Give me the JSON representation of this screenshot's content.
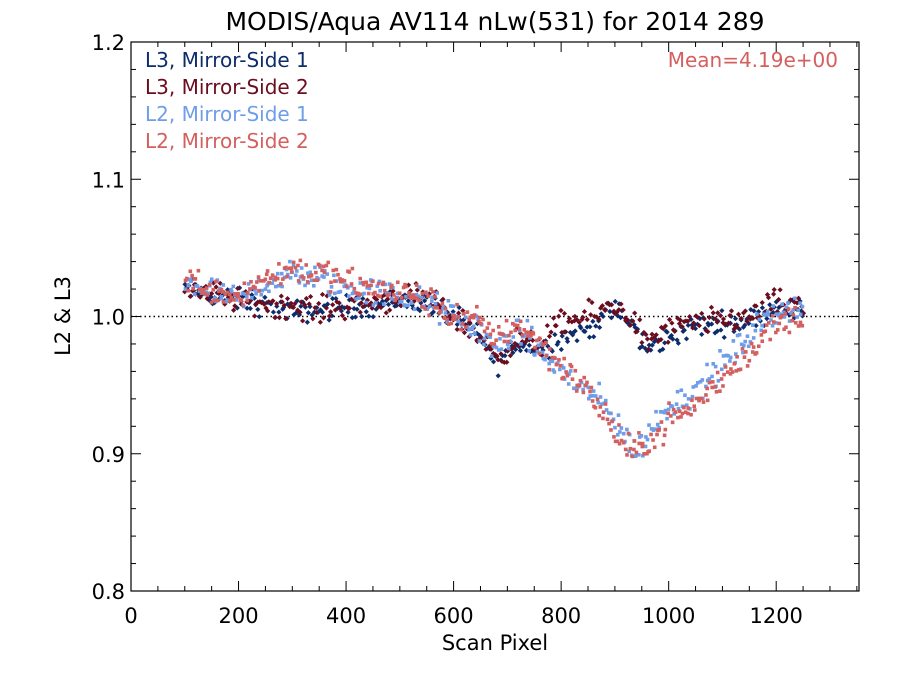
{
  "chart_data": {
    "type": "scatter",
    "title": "MODIS/Aqua AV114 nLw(531) for 2014 289",
    "xlabel": "Scan Pixel",
    "ylabel": "L2 & L3",
    "xlim": [
      0,
      1354
    ],
    "ylim": [
      0.8,
      1.2
    ],
    "xticks": [
      0,
      200,
      400,
      600,
      800,
      1000,
      1200
    ],
    "yticks": [
      0.8,
      0.9,
      1.0,
      1.1,
      1.2
    ],
    "xtick_labels": [
      "0",
      "200",
      "400",
      "600",
      "800",
      "1000",
      "1200"
    ],
    "ytick_labels": [
      "0.8",
      "0.9",
      "1.0",
      "1.1",
      "1.2"
    ],
    "reference_line": {
      "y": 1.0,
      "style": "dotted"
    },
    "annotation": {
      "text": "Mean=4.19e+00",
      "color": "#d45f5f"
    },
    "legend_position": "top-left",
    "series": [
      {
        "name": "L3, Mirror-Side 1",
        "color": "#0d2c6b",
        "marker": "diamond",
        "knots": [
          [
            100,
            1.02
          ],
          [
            150,
            1.015
          ],
          [
            200,
            1.012
          ],
          [
            250,
            1.008
          ],
          [
            300,
            1.003
          ],
          [
            350,
            1.005
          ],
          [
            400,
            1.007
          ],
          [
            450,
            1.008
          ],
          [
            500,
            1.012
          ],
          [
            550,
            1.01
          ],
          [
            600,
            1.0
          ],
          [
            650,
            0.985
          ],
          [
            680,
            0.965
          ],
          [
            700,
            0.975
          ],
          [
            720,
            0.98
          ],
          [
            760,
            0.975
          ],
          [
            800,
            0.985
          ],
          [
            850,
            0.99
          ],
          [
            880,
            1.0
          ],
          [
            900,
            1.005
          ],
          [
            930,
            0.995
          ],
          [
            960,
            0.975
          ],
          [
            1000,
            0.985
          ],
          [
            1050,
            0.993
          ],
          [
            1100,
            0.995
          ],
          [
            1150,
            0.997
          ],
          [
            1200,
            1.008
          ],
          [
            1250,
            1.003
          ]
        ],
        "noise": 0.007,
        "count": 330
      },
      {
        "name": "L3, Mirror-Side 2",
        "color": "#6b0d1f",
        "marker": "diamond",
        "knots": [
          [
            100,
            1.022
          ],
          [
            150,
            1.017
          ],
          [
            200,
            1.012
          ],
          [
            250,
            1.01
          ],
          [
            300,
            1.008
          ],
          [
            350,
            1.005
          ],
          [
            400,
            1.008
          ],
          [
            450,
            1.01
          ],
          [
            500,
            1.015
          ],
          [
            550,
            1.012
          ],
          [
            600,
            1.0
          ],
          [
            650,
            0.985
          ],
          [
            680,
            0.97
          ],
          [
            700,
            0.977
          ],
          [
            720,
            0.982
          ],
          [
            760,
            0.98
          ],
          [
            800,
            0.995
          ],
          [
            850,
            1.0
          ],
          [
            880,
            1.005
          ],
          [
            900,
            1.008
          ],
          [
            930,
            1.0
          ],
          [
            960,
            0.98
          ],
          [
            1000,
            0.99
          ],
          [
            1050,
            0.995
          ],
          [
            1100,
            0.997
          ],
          [
            1150,
            1.0
          ],
          [
            1200,
            1.01
          ],
          [
            1250,
            1.005
          ]
        ],
        "noise": 0.008,
        "count": 330
      },
      {
        "name": "L2, Mirror-Side 1",
        "color": "#6f9ee8",
        "marker": "square",
        "knots": [
          [
            100,
            1.025
          ],
          [
            150,
            1.018
          ],
          [
            200,
            1.01
          ],
          [
            250,
            1.025
          ],
          [
            300,
            1.03
          ],
          [
            350,
            1.028
          ],
          [
            400,
            1.02
          ],
          [
            450,
            1.018
          ],
          [
            500,
            1.015
          ],
          [
            550,
            1.01
          ],
          [
            600,
            1.0
          ],
          [
            650,
            0.99
          ],
          [
            680,
            0.975
          ],
          [
            700,
            0.985
          ],
          [
            720,
            0.99
          ],
          [
            760,
            0.975
          ],
          [
            800,
            0.96
          ],
          [
            850,
            0.945
          ],
          [
            880,
            0.935
          ],
          [
            900,
            0.925
          ],
          [
            930,
            0.905
          ],
          [
            950,
            0.905
          ],
          [
            980,
            0.925
          ],
          [
            1000,
            0.935
          ],
          [
            1050,
            0.945
          ],
          [
            1100,
            0.965
          ],
          [
            1150,
            0.985
          ],
          [
            1200,
            1.005
          ],
          [
            1250,
            1.005
          ]
        ],
        "noise": 0.009,
        "count": 380
      },
      {
        "name": "L2, Mirror-Side 2",
        "color": "#d45f5f",
        "marker": "square",
        "knots": [
          [
            100,
            1.028
          ],
          [
            150,
            1.02
          ],
          [
            200,
            1.015
          ],
          [
            250,
            1.028
          ],
          [
            300,
            1.035
          ],
          [
            350,
            1.032
          ],
          [
            400,
            1.025
          ],
          [
            450,
            1.02
          ],
          [
            500,
            1.018
          ],
          [
            550,
            1.012
          ],
          [
            600,
            1.0
          ],
          [
            650,
            0.995
          ],
          [
            680,
            0.985
          ],
          [
            700,
            0.99
          ],
          [
            720,
            0.995
          ],
          [
            760,
            0.98
          ],
          [
            800,
            0.965
          ],
          [
            850,
            0.945
          ],
          [
            880,
            0.93
          ],
          [
            900,
            0.915
          ],
          [
            930,
            0.9
          ],
          [
            950,
            0.905
          ],
          [
            980,
            0.915
          ],
          [
            1000,
            0.925
          ],
          [
            1050,
            0.935
          ],
          [
            1100,
            0.955
          ],
          [
            1150,
            0.975
          ],
          [
            1200,
            0.995
          ],
          [
            1250,
            1.0
          ]
        ],
        "noise": 0.009,
        "count": 380
      }
    ]
  }
}
